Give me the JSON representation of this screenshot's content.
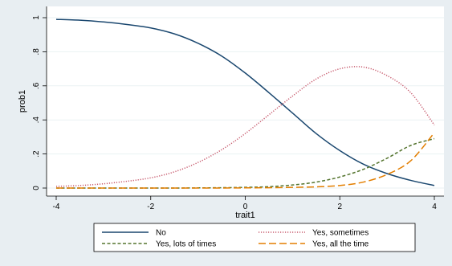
{
  "chart_data": {
    "type": "line",
    "xlabel": "trait1",
    "ylabel": "prob1",
    "xlim": [
      -4,
      4
    ],
    "ylim": [
      0,
      1
    ],
    "xticks": [
      -4,
      -2,
      0,
      2,
      4
    ],
    "xtick_labels": [
      "-4",
      "-2",
      "0",
      "2",
      "4"
    ],
    "yticks": [
      0,
      0.2,
      0.4,
      0.6,
      0.8,
      1
    ],
    "ytick_labels": [
      "0",
      ".2",
      ".4",
      ".6",
      ".8",
      "1"
    ],
    "grid": "horizontal",
    "legend_position": "bottom",
    "x": [
      -4,
      -3.5,
      -3,
      -2.5,
      -2,
      -1.5,
      -1,
      -0.5,
      0,
      0.5,
      1,
      1.5,
      2,
      2.5,
      3,
      3.5,
      4
    ],
    "series": [
      {
        "name": "No",
        "color": "#1a476f",
        "dash": "solid",
        "values": [
          0.99,
          0.985,
          0.975,
          0.96,
          0.94,
          0.905,
          0.85,
          0.775,
          0.675,
          0.56,
          0.44,
          0.32,
          0.22,
          0.14,
          0.085,
          0.045,
          0.015
        ]
      },
      {
        "name": "Yes, sometimes",
        "color": "#c75a6d",
        "dash": "dotted",
        "values": [
          0.01,
          0.015,
          0.025,
          0.04,
          0.06,
          0.095,
          0.15,
          0.225,
          0.32,
          0.43,
          0.54,
          0.64,
          0.7,
          0.71,
          0.66,
          0.56,
          0.37
        ]
      },
      {
        "name": "Yes, lots of times",
        "color": "#55752f",
        "dash": "dashed",
        "values": [
          0.0,
          0.0,
          0.0,
          0.0,
          0.0,
          0.0,
          0.001,
          0.002,
          0.004,
          0.008,
          0.018,
          0.035,
          0.065,
          0.11,
          0.175,
          0.25,
          0.29
        ]
      },
      {
        "name": "Yes, all the time",
        "color": "#e37e00",
        "dash": "longdash",
        "values": [
          0.0,
          0.0,
          0.0,
          0.0,
          0.0,
          0.0,
          0.0,
          0.0,
          0.001,
          0.002,
          0.004,
          0.007,
          0.015,
          0.035,
          0.08,
          0.16,
          0.325
        ]
      }
    ],
    "legend": [
      {
        "label": "No",
        "series": 0
      },
      {
        "label": "Yes, sometimes",
        "series": 1
      },
      {
        "label": "Yes, lots of times",
        "series": 2
      },
      {
        "label": "Yes, all the time",
        "series": 3
      }
    ]
  }
}
